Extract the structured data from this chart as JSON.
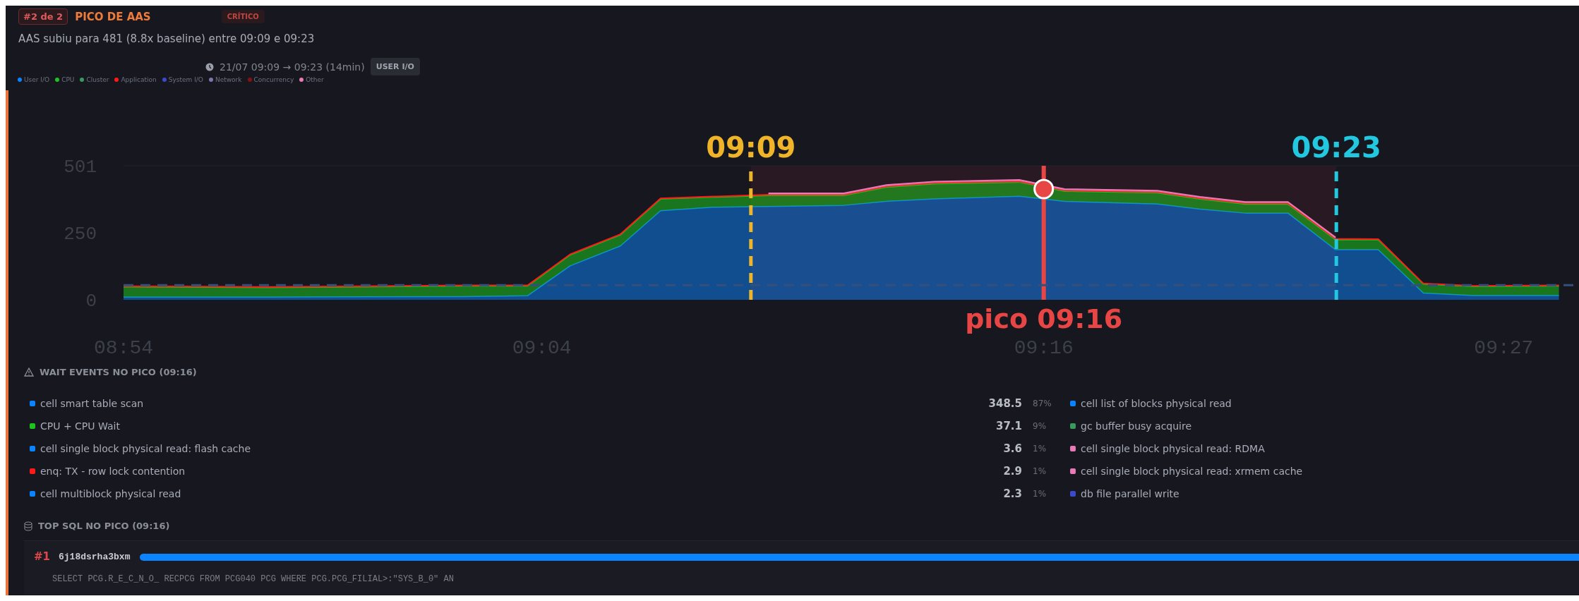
{
  "chart_data": {
    "type": "area",
    "stacked": true,
    "title": "PICO DE AAS",
    "subtitle": "AAS subiu para 481 (8.8x baseline) entre 09:09 e 09:23",
    "x": [
      8.9,
      8.957,
      9.036,
      9.061,
      9.078,
      9.098,
      9.114,
      9.135,
      9.157,
      9.187,
      9.204,
      9.223,
      9.257,
      9.275,
      9.312,
      9.329,
      9.347,
      9.364,
      9.383,
      9.4,
      9.418,
      9.438,
      9.472
    ],
    "series": [
      {
        "name": "User I/O",
        "color": "#0a84ff",
        "values": [
          10,
          10,
          12,
          15,
          127,
          201,
          333,
          346,
          349,
          353,
          368,
          377,
          387,
          368,
          358,
          339,
          324,
          324,
          187,
          187,
          25,
          16,
          16
        ]
      },
      {
        "name": "CPU",
        "color": "#1ec41e",
        "values": [
          39,
          36,
          40,
          37,
          41,
          42,
          44,
          38,
          41,
          37,
          53,
          57,
          53,
          38,
          42,
          38,
          34,
          34,
          38,
          38,
          34,
          34,
          36
        ]
      },
      {
        "name": "Cluster",
        "color": "#3a9a5e",
        "values": [
          null,
          null,
          null,
          null,
          null,
          null,
          null,
          null,
          null,
          null,
          null,
          null,
          null,
          null,
          null,
          null,
          null,
          null,
          null,
          null,
          null,
          null,
          null
        ]
      },
      {
        "name": "Application",
        "color": "#ff1a1a",
        "values": [
          2,
          2,
          2,
          2,
          2,
          2,
          2,
          2,
          3,
          3,
          3,
          3,
          3,
          3,
          3,
          3,
          3,
          3,
          3,
          2,
          2,
          2,
          2
        ]
      },
      {
        "name": "System I/O",
        "color": "#3a4acb",
        "values": [
          null,
          null,
          null,
          null,
          null,
          null,
          null,
          null,
          null,
          null,
          null,
          null,
          null,
          null,
          null,
          null,
          null,
          null,
          null,
          null,
          null,
          null,
          null
        ]
      },
      {
        "name": "Network",
        "color": "#7a78a8",
        "values": [
          null,
          null,
          null,
          null,
          null,
          null,
          null,
          null,
          null,
          null,
          null,
          null,
          null,
          null,
          null,
          null,
          null,
          null,
          null,
          null,
          null,
          null,
          null
        ]
      },
      {
        "name": "Concurrency",
        "color": "#8b1010",
        "values": [
          null,
          null,
          null,
          null,
          null,
          null,
          null,
          null,
          null,
          null,
          null,
          null,
          null,
          null,
          null,
          null,
          null,
          null,
          null,
          null,
          null,
          null,
          null
        ]
      },
      {
        "name": "Other",
        "color": "#e87ab8",
        "values": [
          null,
          null,
          null,
          null,
          null,
          null,
          null,
          null,
          5,
          5,
          5,
          5,
          5,
          5,
          5,
          5,
          5,
          5,
          5,
          null,
          null,
          null,
          null
        ]
      }
    ],
    "xlim": [
      8.9,
      9.48
    ],
    "xticks": [
      {
        "value": 8.9,
        "label": "08:54"
      },
      {
        "value": 9.0667,
        "label": "09:04"
      },
      {
        "value": 9.2667,
        "label": "09:16"
      },
      {
        "value": 9.45,
        "label": "09:27"
      }
    ],
    "ylim": [
      0,
      501
    ],
    "yticks": [
      0,
      250,
      501
    ],
    "legend": "top left",
    "ref_lines": [
      {
        "axis": "x",
        "value": 9.15,
        "label": "09:09",
        "color": "#f0b429",
        "line_style": "dashed"
      },
      {
        "axis": "x",
        "value": 9.3833,
        "label": "09:23",
        "color": "#22c7e0",
        "line_style": "dashed"
      },
      {
        "axis": "x",
        "value": 9.2667,
        "label": "pico 09:16",
        "color": "#e84545",
        "line_style": "solid"
      },
      {
        "axis": "y",
        "value": 55,
        "label": null,
        "color": "#34507a",
        "line_style": "dashed"
      }
    ],
    "bands": [
      {
        "axis": "x",
        "from": 9.15,
        "to": 9.3833,
        "label": null,
        "color": "#2a1a22"
      }
    ],
    "annotations": [
      "#2 de 2",
      "CRÍTICO",
      "21/07 09:09 → 09:23 (14min)",
      "USER I/O",
      "WAIT EVENTS NO PICO (09:16)",
      "cell smart table scan",
      "CPU + CPU Wait",
      "cell single block physical read: flash cache",
      "enq: TX - row lock contention",
      "cell multiblock physical read",
      "348.5",
      "37.1",
      "3.6",
      "2.9",
      "2.3",
      "87%",
      "9%",
      "1%",
      "1%",
      "1%",
      "cell list of blocks physical read",
      "gc buffer busy acquire",
      "cell single block physical read: RDMA",
      "cell single block physical read: xrmem cache",
      "db file parallel write",
      "TOP SQL NO PICO (09:16)",
      "#1",
      "6j18dsrha3bxm",
      "SELECT PCG.R_E_C_N_O_ RECPCG FROM PCG040 PCG WHERE PCG.PCG_FILIAL>:\"SYS_B_0\" AN"
    ]
  }
}
